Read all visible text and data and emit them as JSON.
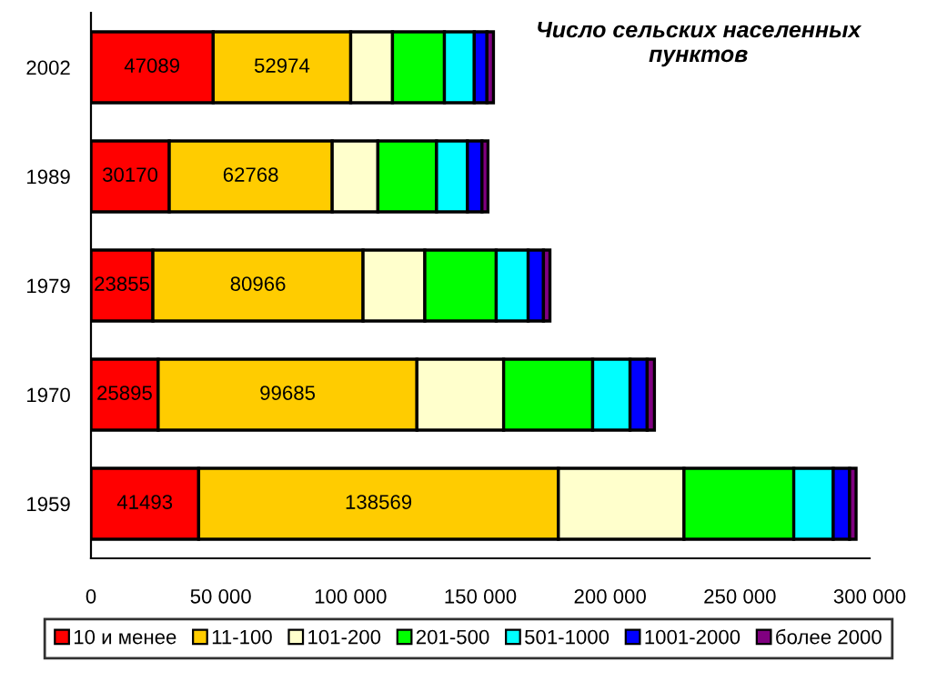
{
  "chart_data": {
    "type": "bar",
    "orientation": "horizontal",
    "stacked": true,
    "title": "Число сельских населенных пунктов",
    "categories": [
      "2002",
      "1989",
      "1979",
      "1970",
      "1959"
    ],
    "series": [
      {
        "name": "10 и менее",
        "color": "#ff0000",
        "values": [
          47089,
          30170,
          23855,
          25895,
          41493
        ],
        "value_labels": [
          "47089",
          "30170",
          "23855",
          "25895",
          "41493"
        ]
      },
      {
        "name": "11-100",
        "color": "#ffcc00",
        "values": [
          52974,
          62768,
          80966,
          99685,
          138569
        ],
        "value_labels": [
          "52974",
          "62768",
          "80966",
          "99685",
          "138569"
        ]
      },
      {
        "name": "101-200",
        "color": "#ffffcc",
        "values": [
          16100,
          17600,
          23800,
          33400,
          48400
        ]
      },
      {
        "name": "201-500",
        "color": "#00ff00",
        "values": [
          20000,
          22600,
          27500,
          34300,
          42300
        ]
      },
      {
        "name": "501-1000",
        "color": "#00ffff",
        "values": [
          11500,
          11900,
          12300,
          14400,
          15200
        ]
      },
      {
        "name": "1001-2000",
        "color": "#0000ff",
        "values": [
          4900,
          5600,
          5900,
          6600,
          6300
        ]
      },
      {
        "name": "более 2000",
        "color": "#800080",
        "values": [
          2500,
          2300,
          2500,
          2800,
          2500
        ]
      }
    ],
    "xlim": [
      0,
      300000
    ],
    "xticks": [
      {
        "value": 0,
        "label": "0"
      },
      {
        "value": 50000,
        "label": "50 000"
      },
      {
        "value": 100000,
        "label": "100 000"
      },
      {
        "value": 150000,
        "label": "150 000"
      },
      {
        "value": 200000,
        "label": "200 000"
      },
      {
        "value": 250000,
        "label": "250 000"
      },
      {
        "value": 300000,
        "label": "300 000"
      }
    ],
    "grid": false,
    "legend": "bottom"
  }
}
